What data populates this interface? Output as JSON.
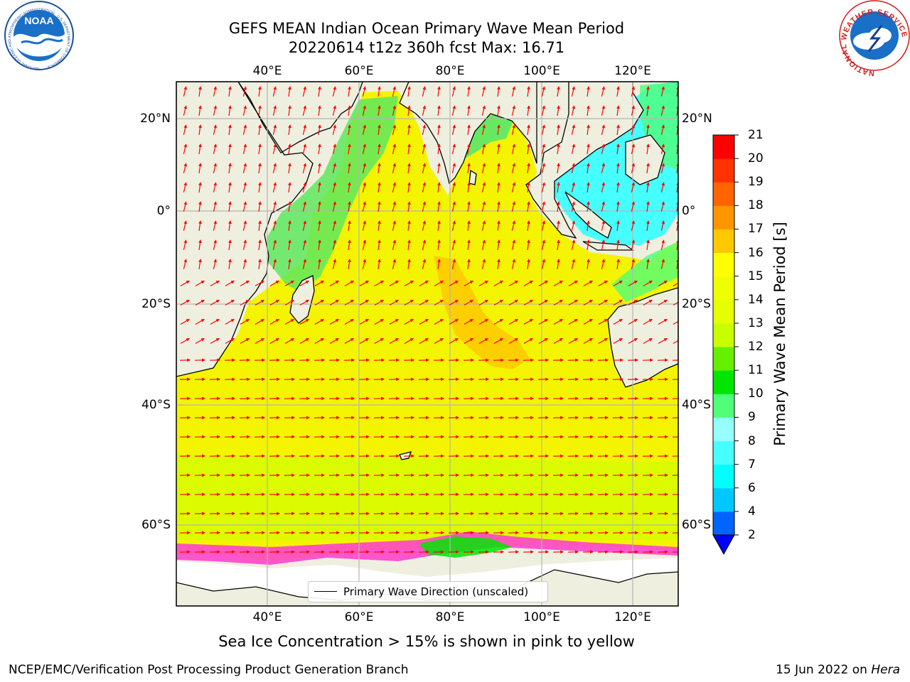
{
  "header": {
    "title_line1": "GEFS MEAN Indian Ocean Primary Wave Mean Period",
    "title_line2": "20220614 t12z 360h fcst   Max: 16.71"
  },
  "logos": {
    "left": "NOAA",
    "left_ring": "NATIONAL OCEANIC AND ATMOSPHERIC ADMINISTRATION · U.S. DEPARTMENT OF COMMERCE",
    "right_ring": "NATIONAL WEATHER SERVICE"
  },
  "map": {
    "lon_labels": [
      "40°E",
      "60°E",
      "80°E",
      "100°E",
      "120°E"
    ],
    "lat_labels": [
      "20°N",
      "0°",
      "20°S",
      "40°S",
      "60°S"
    ],
    "colors": {
      "land": "#efefdf",
      "ocean_main": "#f4f400",
      "gridline": "#b4b4b4",
      "arrow": "#ff0000"
    }
  },
  "legend": {
    "label": "Primary Wave Direction (unscaled)"
  },
  "colorbar": {
    "label": "Primary Wave Mean Period [s]",
    "ticks": [
      "2",
      "4",
      "6",
      "7",
      "8",
      "9",
      "10",
      "11",
      "12",
      "13",
      "14",
      "15",
      "16",
      "17",
      "18",
      "19",
      "20",
      "21"
    ],
    "colors": [
      "#0064ff",
      "#00c8ff",
      "#00ffff",
      "#46ffff",
      "#96ffff",
      "#50ff78",
      "#00e600",
      "#64f000",
      "#c8ff00",
      "#e6ff00",
      "#f0ff00",
      "#ffff00",
      "#ffc800",
      "#ff9600",
      "#ff6400",
      "#ff3200",
      "#ff0000"
    ],
    "extend_color": "#0000ff"
  },
  "footer": {
    "sea_ice_note": "Sea Ice Concentration > 15% is shown in pink to yellow",
    "credit": "NCEP/EMC/Verification Post Processing Product Generation Branch",
    "date": "15 Jun 2022 on ",
    "host": "Hera"
  }
}
